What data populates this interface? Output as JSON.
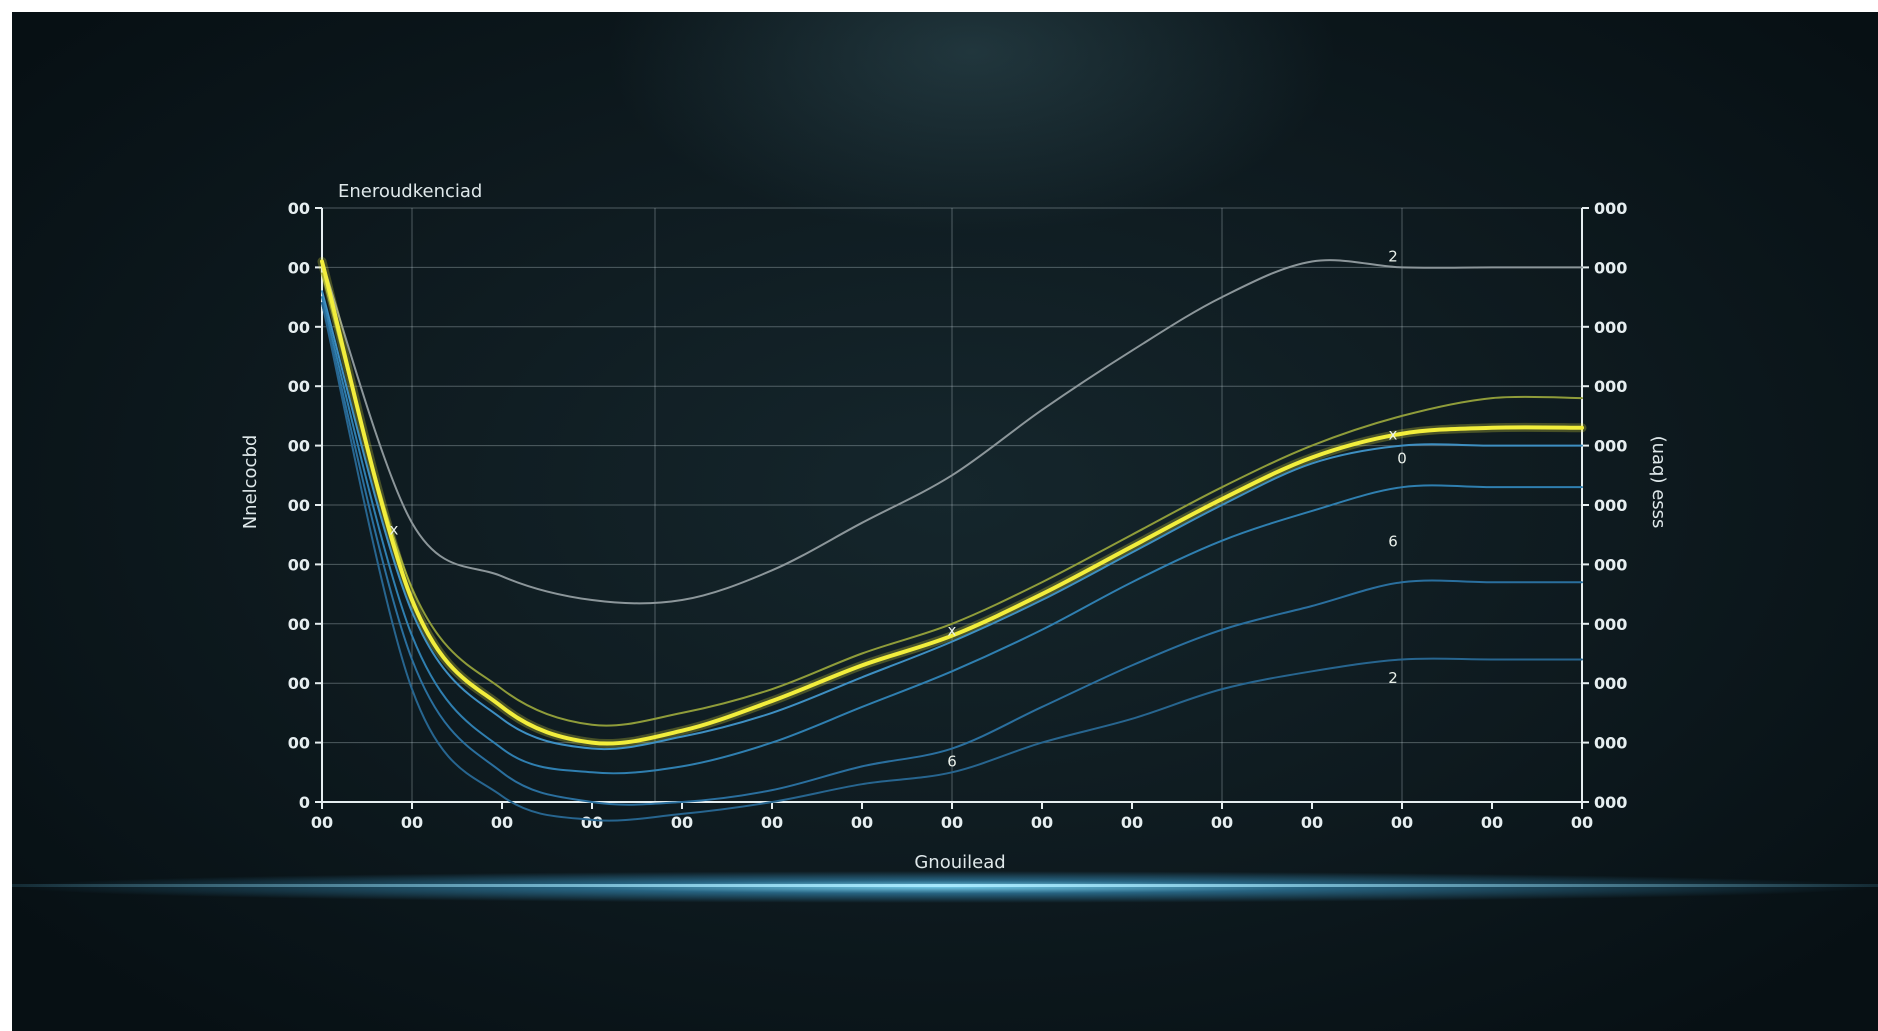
{
  "chart_data": {
    "type": "line",
    "title": "Eneroudkenciad",
    "xlabel": "Gnouilead",
    "ylabel": "Nnelcocbd",
    "y2label": "(uaq) esss",
    "x_tick_labels": [
      "00",
      "00",
      "00",
      "00",
      "00",
      "00",
      "00",
      "00",
      "00",
      "00",
      "00",
      "00",
      "00",
      "00",
      "00"
    ],
    "y_tick_labels": [
      "0",
      "00",
      "00",
      "00",
      "00",
      "00",
      "00",
      "00",
      "00",
      "00",
      "00"
    ],
    "y2_tick_labels": [
      "000",
      "000",
      "000",
      "000",
      "000",
      "000",
      "000",
      "000",
      "000",
      "000",
      "000"
    ],
    "x": [
      0,
      1,
      2,
      3,
      4,
      5,
      6,
      7,
      8,
      9,
      10,
      11,
      12,
      13,
      14
    ],
    "xlim": [
      0,
      14
    ],
    "ylim": [
      0,
      10
    ],
    "grid": true,
    "series": [
      {
        "values": [
          9.1,
          4.7,
          3.8,
          3.4,
          3.4,
          3.9,
          4.7,
          5.5,
          6.6,
          7.6,
          8.5,
          9.1,
          9.0,
          9.0,
          9.0
        ],
        "color": "#8c969a"
      },
      {
        "values": [
          8.9,
          3.6,
          1.9,
          1.3,
          1.5,
          1.9,
          2.5,
          3.0,
          3.7,
          4.5,
          5.3,
          6.0,
          6.5,
          6.8,
          6.8
        ],
        "color": "#8f9c3a"
      },
      {
        "values": [
          9.1,
          3.4,
          1.6,
          1.0,
          1.2,
          1.7,
          2.3,
          2.8,
          3.5,
          4.3,
          5.1,
          5.8,
          6.2,
          6.3,
          6.3
        ],
        "color": "#f2ee3c"
      },
      {
        "values": [
          8.6,
          3.2,
          1.4,
          0.9,
          1.1,
          1.5,
          2.1,
          2.7,
          3.4,
          4.2,
          5.0,
          5.7,
          6.0,
          6.0,
          6.0
        ],
        "color": "#3e8fc2"
      },
      {
        "values": [
          8.5,
          2.8,
          0.9,
          0.5,
          0.6,
          1.0,
          1.6,
          2.2,
          2.9,
          3.7,
          4.4,
          4.9,
          5.3,
          5.3,
          5.3
        ],
        "color": "#2f7fb0"
      },
      {
        "values": [
          8.4,
          2.4,
          0.5,
          0.0,
          0.0,
          0.2,
          0.6,
          0.9,
          1.6,
          2.3,
          2.9,
          3.3,
          3.7,
          3.7,
          3.7
        ],
        "color": "#2a6f9e"
      },
      {
        "values": [
          8.4,
          1.9,
          0.1,
          -0.3,
          -0.2,
          0.0,
          0.3,
          0.5,
          1.0,
          1.4,
          1.9,
          2.2,
          2.4,
          2.4,
          2.4
        ],
        "color": "#27658f"
      }
    ],
    "annotations": [
      {
        "text": "x",
        "x": 0.8,
        "y": 4.5
      },
      {
        "text": "x",
        "x": 7.0,
        "y": 2.8
      },
      {
        "text": "x",
        "x": 11.9,
        "y": 6.1
      },
      {
        "text": "2",
        "x": 11.9,
        "y": 9.1
      },
      {
        "text": "0",
        "x": 12.0,
        "y": 5.7
      },
      {
        "text": "6",
        "x": 11.9,
        "y": 4.3
      },
      {
        "text": "2",
        "x": 11.9,
        "y": 2.0
      },
      {
        "text": "6",
        "x": 7.0,
        "y": 0.6
      }
    ]
  }
}
